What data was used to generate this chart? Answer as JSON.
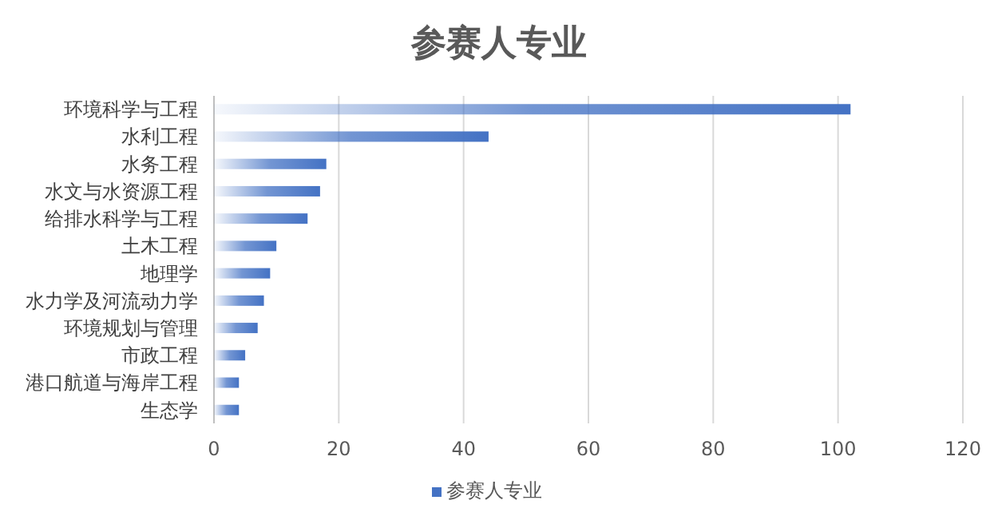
{
  "chart_data": {
    "type": "bar",
    "orientation": "horizontal",
    "title": "参赛人专业",
    "categories": [
      "环境科学与工程",
      "水利工程",
      "水务工程",
      "水文与水资源工程",
      "给排水科学与工程",
      "土木工程",
      "地理学",
      "水力学及河流动力学",
      "环境规划与管理",
      "市政工程",
      "港口航道与海岸工程",
      "生态学"
    ],
    "series": [
      {
        "name": "参赛人专业",
        "color": "#4472c4",
        "values": [
          102,
          44,
          18,
          17,
          15,
          10,
          9,
          8,
          7,
          5,
          4,
          4
        ]
      }
    ],
    "xlim": [
      0,
      120
    ],
    "xticks": [
      0,
      20,
      40,
      60,
      80,
      100,
      120
    ],
    "grid": "x",
    "legend": "bottom"
  }
}
